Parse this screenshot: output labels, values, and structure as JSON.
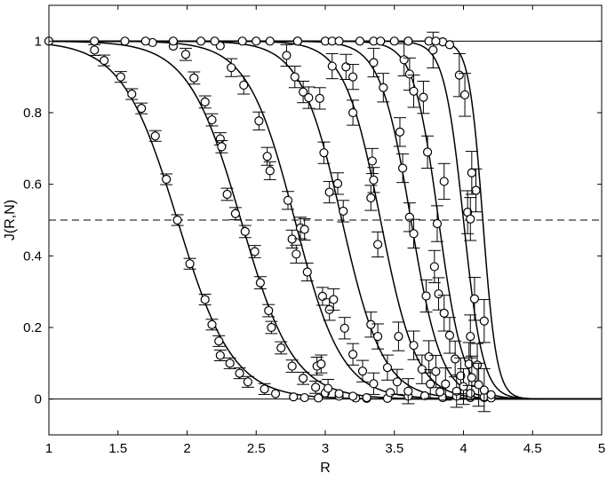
{
  "chart_data": {
    "type": "scatter",
    "title": "",
    "xlabel": "R",
    "ylabel": "J(R,N)",
    "xlim": [
      1,
      5
    ],
    "ylim": [
      -0.1,
      1.1
    ],
    "xticks": [
      1,
      1.5,
      2,
      2.5,
      3,
      3.5,
      4,
      4.5,
      5
    ],
    "xtick_labels": [
      "1",
      "1.5",
      "2",
      "2.5",
      "3",
      "3.5",
      "4",
      "4.5",
      "5"
    ],
    "yticks": [
      0,
      0.2,
      0.4,
      0.6,
      0.8,
      1
    ],
    "ytick_labels": [
      "0",
      "0.2",
      "0.4",
      "0.6",
      "0.8",
      "1"
    ],
    "grid": false,
    "legend": "none",
    "reference_lines": [
      {
        "y": 1,
        "style": "solid"
      },
      {
        "y": 0,
        "style": "solid"
      },
      {
        "y": 0.5,
        "style": "dashed"
      }
    ],
    "fit_curves": [
      {
        "midpoint": 1.93,
        "width": 0.2
      },
      {
        "midpoint": 2.39,
        "width": 0.19
      },
      {
        "midpoint": 2.78,
        "width": 0.17
      },
      {
        "midpoint": 3.12,
        "width": 0.15
      },
      {
        "midpoint": 3.4,
        "width": 0.13
      },
      {
        "midpoint": 3.62,
        "width": 0.11
      },
      {
        "midpoint": 3.82,
        "width": 0.09
      },
      {
        "midpoint": 4.0,
        "width": 0.07
      },
      {
        "midpoint": 4.14,
        "width": 0.05
      }
    ],
    "series": [
      {
        "points": [
          [
            1.0,
            1.0
          ],
          [
            1.33,
            0.975
          ],
          [
            1.4,
            0.946
          ],
          [
            1.52,
            0.9
          ],
          [
            1.6,
            0.852
          ],
          [
            1.67,
            0.812
          ],
          [
            1.77,
            0.735
          ],
          [
            1.85,
            0.614
          ],
          [
            1.93,
            0.5
          ],
          [
            2.02,
            0.378
          ],
          [
            2.13,
            0.278
          ],
          [
            2.18,
            0.208
          ],
          [
            2.23,
            0.162
          ],
          [
            2.24,
            0.122
          ],
          [
            2.31,
            0.1
          ],
          [
            2.38,
            0.072
          ],
          [
            2.44,
            0.048
          ],
          [
            2.56,
            0.028
          ],
          [
            2.64,
            0.015
          ],
          [
            2.77,
            0.006
          ],
          [
            2.85,
            0.004
          ],
          [
            2.95,
            0.003
          ]
        ],
        "err": 0.015
      },
      {
        "points": [
          [
            1.33,
            1.0
          ],
          [
            1.55,
            1.0
          ],
          [
            1.75,
            0.996
          ],
          [
            1.9,
            0.986
          ],
          [
            1.99,
            0.963
          ],
          [
            2.05,
            0.897
          ],
          [
            2.13,
            0.83
          ],
          [
            2.18,
            0.78
          ],
          [
            2.24,
            0.727
          ],
          [
            2.25,
            0.705
          ],
          [
            2.29,
            0.572
          ],
          [
            2.35,
            0.518
          ],
          [
            2.42,
            0.468
          ],
          [
            2.49,
            0.412
          ],
          [
            2.53,
            0.325
          ],
          [
            2.59,
            0.247
          ],
          [
            2.61,
            0.2
          ],
          [
            2.68,
            0.143
          ],
          [
            2.76,
            0.092
          ],
          [
            2.84,
            0.058
          ],
          [
            2.93,
            0.033
          ],
          [
            3.0,
            0.017
          ],
          [
            3.1,
            0.008
          ],
          [
            3.22,
            0.003
          ],
          [
            3.3,
            0.002
          ]
        ],
        "err": 0.017
      },
      {
        "points": [
          [
            1.7,
            1.0
          ],
          [
            1.9,
            1.0
          ],
          [
            2.1,
            1.0
          ],
          [
            2.24,
            0.987
          ],
          [
            2.32,
            0.926
          ],
          [
            2.41,
            0.877
          ],
          [
            2.52,
            0.777
          ],
          [
            2.58,
            0.678
          ],
          [
            2.6,
            0.638
          ],
          [
            2.73,
            0.555
          ],
          [
            2.76,
            0.447
          ],
          [
            2.79,
            0.405
          ],
          [
            2.87,
            0.355
          ],
          [
            2.98,
            0.287
          ],
          [
            2.94,
            0.092
          ],
          [
            2.97,
            0.098
          ],
          [
            3.02,
            0.03
          ],
          [
            3.1,
            0.015
          ],
          [
            3.2,
            0.008
          ],
          [
            3.3,
            0.004
          ],
          [
            3.45,
            0.002
          ]
        ],
        "err": 0.025
      },
      {
        "points": [
          [
            2.2,
            1.0
          ],
          [
            2.4,
            1.0
          ],
          [
            2.6,
            1.0
          ],
          [
            2.72,
            0.96
          ],
          [
            2.78,
            0.9
          ],
          [
            2.84,
            0.858
          ],
          [
            2.88,
            0.842
          ],
          [
            2.96,
            0.84
          ],
          [
            2.99,
            0.688
          ],
          [
            3.03,
            0.578
          ],
          [
            3.09,
            0.602
          ],
          [
            3.13,
            0.525
          ],
          [
            2.82,
            0.478
          ],
          [
            2.85,
            0.474
          ],
          [
            3.03,
            0.25
          ],
          [
            3.06,
            0.278
          ],
          [
            3.14,
            0.198
          ],
          [
            3.2,
            0.125
          ],
          [
            3.27,
            0.078
          ],
          [
            3.35,
            0.043
          ],
          [
            3.47,
            0.018
          ],
          [
            3.6,
            0.008
          ]
        ],
        "err": 0.03
      },
      {
        "points": [
          [
            2.5,
            1.0
          ],
          [
            2.8,
            1.0
          ],
          [
            3.0,
            1.0
          ],
          [
            3.05,
            0.93
          ],
          [
            3.15,
            0.928
          ],
          [
            3.2,
            0.9
          ],
          [
            3.2,
            0.8
          ],
          [
            3.34,
            0.665
          ],
          [
            3.35,
            0.612
          ],
          [
            3.33,
            0.562
          ],
          [
            3.38,
            0.432
          ],
          [
            3.33,
            0.208
          ],
          [
            3.38,
            0.175
          ],
          [
            3.45,
            0.088
          ],
          [
            3.52,
            0.048
          ],
          [
            3.6,
            0.022
          ],
          [
            3.72,
            0.009
          ],
          [
            3.85,
            0.004
          ]
        ],
        "err": 0.035
      },
      {
        "points": [
          [
            2.8,
            1.0
          ],
          [
            3.05,
            1.0
          ],
          [
            3.25,
            1.0
          ],
          [
            3.35,
            0.94
          ],
          [
            3.42,
            0.87
          ],
          [
            3.54,
            0.746
          ],
          [
            3.56,
            0.645
          ],
          [
            3.61,
            0.508
          ],
          [
            3.64,
            0.462
          ],
          [
            3.53,
            0.175
          ],
          [
            3.64,
            0.15
          ],
          [
            3.7,
            0.083
          ],
          [
            3.76,
            0.042
          ],
          [
            3.83,
            0.02
          ],
          [
            3.95,
            0.008
          ],
          [
            4.05,
            0.004
          ]
        ],
        "err": 0.04
      },
      {
        "points": [
          [
            3.1,
            1.0
          ],
          [
            3.35,
            1.0
          ],
          [
            3.5,
            1.0
          ],
          [
            3.57,
            0.948
          ],
          [
            3.61,
            0.908
          ],
          [
            3.64,
            0.86
          ],
          [
            3.71,
            0.843
          ],
          [
            3.74,
            0.69
          ],
          [
            3.79,
            0.37
          ],
          [
            3.82,
            0.294
          ],
          [
            3.73,
            0.288
          ],
          [
            3.75,
            0.118
          ],
          [
            3.8,
            0.077
          ],
          [
            3.87,
            0.042
          ],
          [
            3.95,
            0.022
          ],
          [
            4.05,
            0.008
          ],
          [
            4.15,
            0.004
          ]
        ],
        "err": 0.045
      },
      {
        "points": [
          [
            3.4,
            1.0
          ],
          [
            3.6,
            1.0
          ],
          [
            3.75,
            1.0
          ],
          [
            3.78,
            0.975
          ],
          [
            3.85,
            0.998
          ],
          [
            3.81,
            0.49
          ],
          [
            3.86,
            0.608
          ],
          [
            3.86,
            0.24
          ],
          [
            3.9,
            0.178
          ],
          [
            3.94,
            0.112
          ],
          [
            3.98,
            0.065
          ],
          [
            4.0,
            0.035
          ],
          [
            4.05,
            0.016
          ],
          [
            4.15,
            0.006
          ],
          [
            4.2,
            0.003
          ]
        ],
        "err": 0.05
      },
      {
        "points": [
          [
            3.6,
            1.0
          ],
          [
            3.8,
            1.0
          ],
          [
            3.9,
            0.99
          ],
          [
            3.97,
            0.905
          ],
          [
            4.01,
            0.85
          ],
          [
            4.06,
            0.632
          ],
          [
            4.09,
            0.583
          ],
          [
            4.03,
            0.522
          ],
          [
            4.05,
            0.503
          ],
          [
            4.08,
            0.28
          ],
          [
            4.15,
            0.218
          ],
          [
            4.05,
            0.175
          ],
          [
            4.1,
            0.095
          ],
          [
            4.04,
            0.098
          ],
          [
            4.06,
            0.06
          ],
          [
            4.11,
            0.04
          ],
          [
            4.15,
            0.025
          ],
          [
            4.2,
            0.012
          ]
        ],
        "err": 0.06
      }
    ]
  }
}
